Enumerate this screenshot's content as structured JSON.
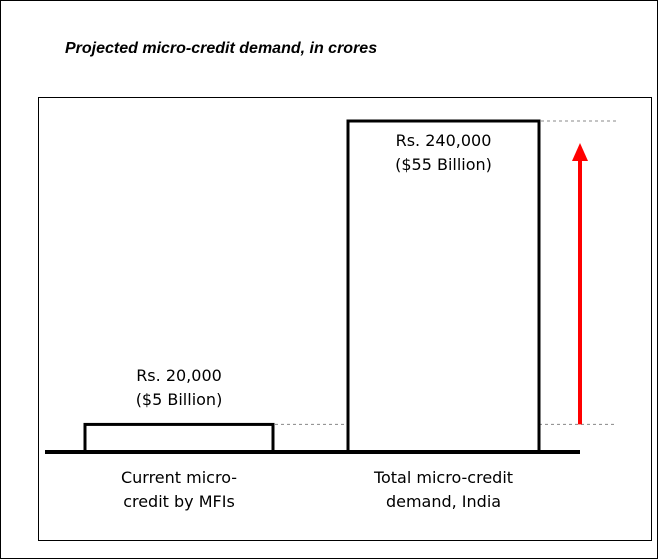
{
  "chart_data": {
    "type": "bar",
    "title": "Projected micro-credit demand, in crores",
    "categories": [
      "Current micro-credit by MFIs",
      "Total micro-credit demand, India"
    ],
    "values": [
      20000,
      240000
    ],
    "value_labels": [
      "Rs. 20,000",
      "Rs. 240,000"
    ],
    "value_sublabels": [
      "($5 Billion)",
      "($55 Billion)"
    ],
    "color": "#ffffff",
    "edge_color": "#000000",
    "arrow_color": "#ff0000"
  }
}
